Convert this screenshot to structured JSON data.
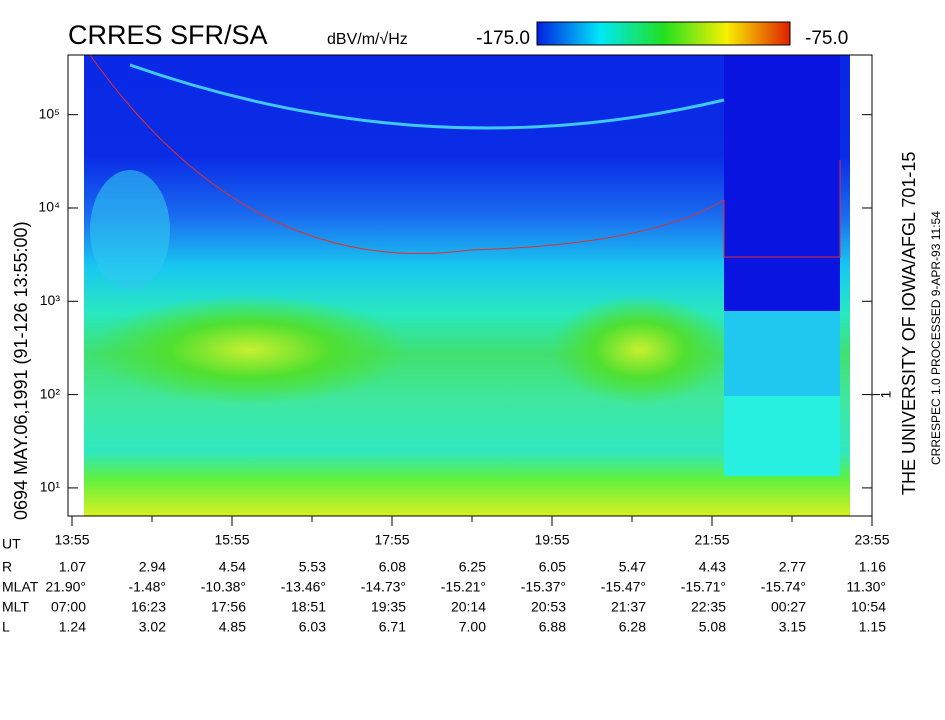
{
  "chart_data": {
    "type": "spectrogram",
    "title": "CRRES SFR/SA",
    "colorbar_unit": "dBV/m/√Hz",
    "zlim": [
      {
        "value": -175,
        "label": "-175.0"
      },
      {
        "value": -75,
        "label": "-75.0"
      }
    ],
    "left_caption": "0694   MAY.06,1991   (91-126 13:55:00)",
    "right_caption": "THE UNIVERSITY OF IOWA/AFGL 701-15",
    "right_subcaption": "CRRESPEC 1.0   PROCESSED  9-APR-93  11:54",
    "log_y": true,
    "ylim": [
      5,
      436000
    ],
    "yticks": [
      {
        "value": 10,
        "label": "10¹"
      },
      {
        "value": 100,
        "label": "10²"
      },
      {
        "value": 1000,
        "label": "10³"
      },
      {
        "value": 10000,
        "label": "10⁴"
      },
      {
        "value": 100000,
        "label": "10⁵"
      }
    ],
    "y2lim": [
      0.05,
      4360
    ],
    "y2ticks": [
      1
    ],
    "x_label": "UT",
    "categories": [
      "13:55",
      "15:55",
      "17:55",
      "19:55",
      "21:55",
      "23:55"
    ],
    "ephemeris": [
      {
        "label": "R",
        "values": [
          "1.07",
          "2.94",
          "4.54",
          "5.53",
          "6.08",
          "6.25",
          "6.05",
          "5.47",
          "4.43",
          "2.77",
          "1.16"
        ]
      },
      {
        "label": "MLAT",
        "values": [
          "21.90°",
          "-1.48°",
          "-10.38°",
          "-13.46°",
          "-14.73°",
          "-15.21°",
          "-15.37°",
          "-15.47°",
          "-15.71°",
          "-15.74°",
          "11.30°"
        ]
      },
      {
        "label": "MLT",
        "values": [
          "07:00",
          "16:23",
          "17:56",
          "18:51",
          "19:35",
          "20:14",
          "20:53",
          "21:37",
          "22:35",
          "00:27",
          "10:54"
        ]
      },
      {
        "label": "L",
        "values": [
          "1.24",
          "3.02",
          "4.85",
          "6.03",
          "6.71",
          "7.00",
          "6.88",
          "6.28",
          "5.08",
          "3.15",
          "1.15"
        ]
      }
    ]
  }
}
